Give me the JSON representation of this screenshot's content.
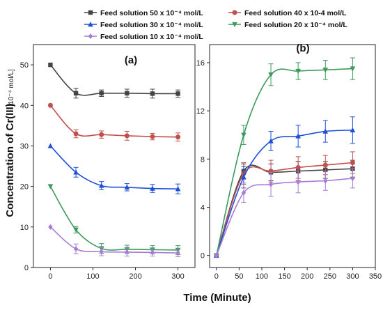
{
  "chart_data": {
    "type": "line",
    "xlabel": "Time (Minute)",
    "ylabel": "Concentration of Cr(III)",
    "ylabel_unit": "[10⁻⁴ mol/L]",
    "legend": [
      {
        "label": "Feed solution 50 x 10⁻⁴ mol/L",
        "color": "#444444",
        "marker": "square"
      },
      {
        "label": "Feed solution 40 x 10-4 mol/L",
        "color": "#c0504d",
        "marker": "circle"
      },
      {
        "label": "Feed solution 30 x 10⁻⁴ mol/L",
        "color": "#1f4fd6",
        "marker": "triangle-up"
      },
      {
        "label": "Feed solution 20 x 10⁻⁴ mol/L",
        "color": "#3a9a5a",
        "marker": "triangle-down"
      },
      {
        "label": "Feed solution 10 x 10⁻⁴ mol/L",
        "color": "#a77bd6",
        "marker": "diamond"
      }
    ],
    "panels": [
      {
        "label": "(a)",
        "x_ticks": [
          0,
          100,
          200,
          300
        ],
        "y_ticks": [
          0,
          10,
          20,
          30,
          40,
          50
        ],
        "xlim": [
          -40,
          340
        ],
        "ylim": [
          0,
          55
        ],
        "x": [
          0,
          60,
          120,
          180,
          240,
          300
        ],
        "series": [
          {
            "name": "Feed solution 50 x 10⁻⁴ mol/L",
            "values": [
              50,
              43,
              43,
              43,
              42.9,
              42.9
            ],
            "errors": [
              0,
              1.2,
              0.8,
              1.0,
              1.1,
              0.9
            ]
          },
          {
            "name": "Feed solution 40 x 10-4 mol/L",
            "values": [
              40,
              33,
              32.8,
              32.5,
              32.3,
              32.2
            ],
            "errors": [
              0,
              1.0,
              0.9,
              1.1,
              0.8,
              1.0
            ]
          },
          {
            "name": "Feed solution 30 x 10⁻⁴ mol/L",
            "values": [
              30,
              23.5,
              20.2,
              19.8,
              19.5,
              19.4
            ],
            "errors": [
              0,
              1.2,
              1.0,
              0.9,
              1.0,
              1.2
            ]
          },
          {
            "name": "Feed solution 20 x 10⁻⁴ mol/L",
            "values": [
              20,
              9.3,
              4.7,
              4.5,
              4.4,
              4.3
            ],
            "errors": [
              0,
              0.8,
              1.2,
              1.0,
              1.0,
              1.1
            ]
          },
          {
            "name": "Feed solution 10 x 10⁻⁴ mol/L",
            "values": [
              10,
              4.6,
              3.9,
              3.8,
              3.7,
              3.6
            ],
            "errors": [
              0,
              1.2,
              1.0,
              1.0,
              0.9,
              0.9
            ]
          }
        ]
      },
      {
        "label": "(b)",
        "x_ticks": [
          0,
          50,
          100,
          150,
          200,
          250,
          300,
          350
        ],
        "y_ticks": [
          0,
          4,
          8,
          12,
          16
        ],
        "xlim": [
          -15,
          350
        ],
        "ylim": [
          -1,
          17.5
        ],
        "x": [
          0,
          60,
          120,
          180,
          240,
          300
        ],
        "series": [
          {
            "name": "Feed solution 50 x 10⁻⁴ mol/L",
            "values": [
              0,
              7.0,
              6.9,
              7.0,
              7.1,
              7.2
            ],
            "errors": [
              0,
              0.6,
              0.7,
              0.8,
              0.7,
              0.7
            ]
          },
          {
            "name": "Feed solution 40 x 10-4 mol/L",
            "values": [
              0,
              6.8,
              7.0,
              7.3,
              7.5,
              7.7
            ],
            "errors": [
              0,
              0.9,
              0.9,
              0.9,
              0.8,
              0.9
            ]
          },
          {
            "name": "Feed solution 30 x 10⁻⁴ mol/L",
            "values": [
              0,
              6.5,
              9.5,
              9.9,
              10.3,
              10.4
            ],
            "errors": [
              0,
              0.9,
              0.8,
              0.9,
              0.9,
              1.1
            ]
          },
          {
            "name": "Feed solution 20 x 10⁻⁴ mol/L",
            "values": [
              0,
              10.0,
              15.0,
              15.3,
              15.4,
              15.5
            ],
            "errors": [
              0,
              0.8,
              0.9,
              0.7,
              0.8,
              0.9
            ]
          },
          {
            "name": "Feed solution 10 x 10⁻⁴ mol/L",
            "values": [
              0,
              5.2,
              5.9,
              6.1,
              6.2,
              6.4
            ],
            "errors": [
              0,
              0.8,
              1.0,
              0.9,
              0.8,
              0.8
            ]
          }
        ]
      }
    ]
  }
}
